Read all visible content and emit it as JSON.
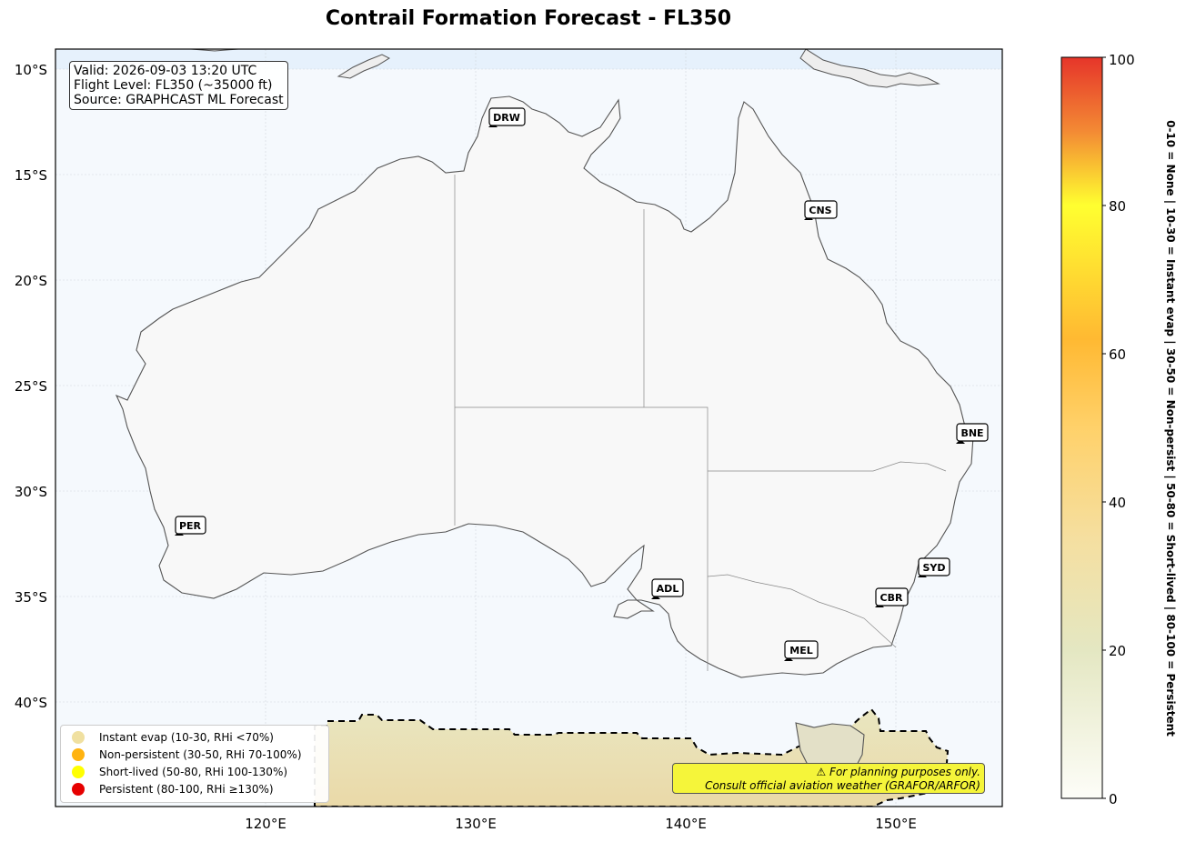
{
  "title": "Contrail Formation Forecast - FL350",
  "info": {
    "valid": "Valid: 2026-09-03 13:20 UTC",
    "flight_level": "Flight Level: FL350 (~35000 ft)",
    "source": "Source: GRAPHCAST ML Forecast"
  },
  "axes": {
    "lat_ticks": [
      "10°S",
      "15°S",
      "20°S",
      "25°S",
      "30°S",
      "35°S",
      "40°S"
    ],
    "lon_ticks": [
      "120°E",
      "130°E",
      "140°E",
      "150°E"
    ]
  },
  "cities": [
    {
      "code": "DRW"
    },
    {
      "code": "CNS"
    },
    {
      "code": "BNE"
    },
    {
      "code": "PER"
    },
    {
      "code": "SYD"
    },
    {
      "code": "ADL"
    },
    {
      "code": "CBR"
    },
    {
      "code": "MEL"
    }
  ],
  "legend": [
    {
      "label": "Instant evap (10-30, RHi <70%)",
      "color": "#f0e0a0"
    },
    {
      "label": "Non-persistent (30-50, RHi 70-100%)",
      "color": "#ffb310"
    },
    {
      "label": "Short-lived (50-80, RHi 100-130%)",
      "color": "#ffff00"
    },
    {
      "label": "Persistent (80-100, RHi ≥130%)",
      "color": "#e60000"
    }
  ],
  "disclaimer": {
    "line1": "⚠ For planning purposes only.",
    "line2": "Consult official aviation weather (GRAFOR/ARFOR)"
  },
  "colorbar": {
    "ticks": [
      "0",
      "20",
      "40",
      "60",
      "80",
      "100"
    ],
    "label": "0-10 = None  |  10-30 = Instant evap  |  30-50 = Non-persist  |  50-80 = Short-lived  |  80-100 = Persistent",
    "colors": {
      "low": "#fdfdf8",
      "mid": "#e6e8c4",
      "warm": "#ffbe3a",
      "yellow": "#ffff33",
      "high": "#e8382a"
    }
  }
}
